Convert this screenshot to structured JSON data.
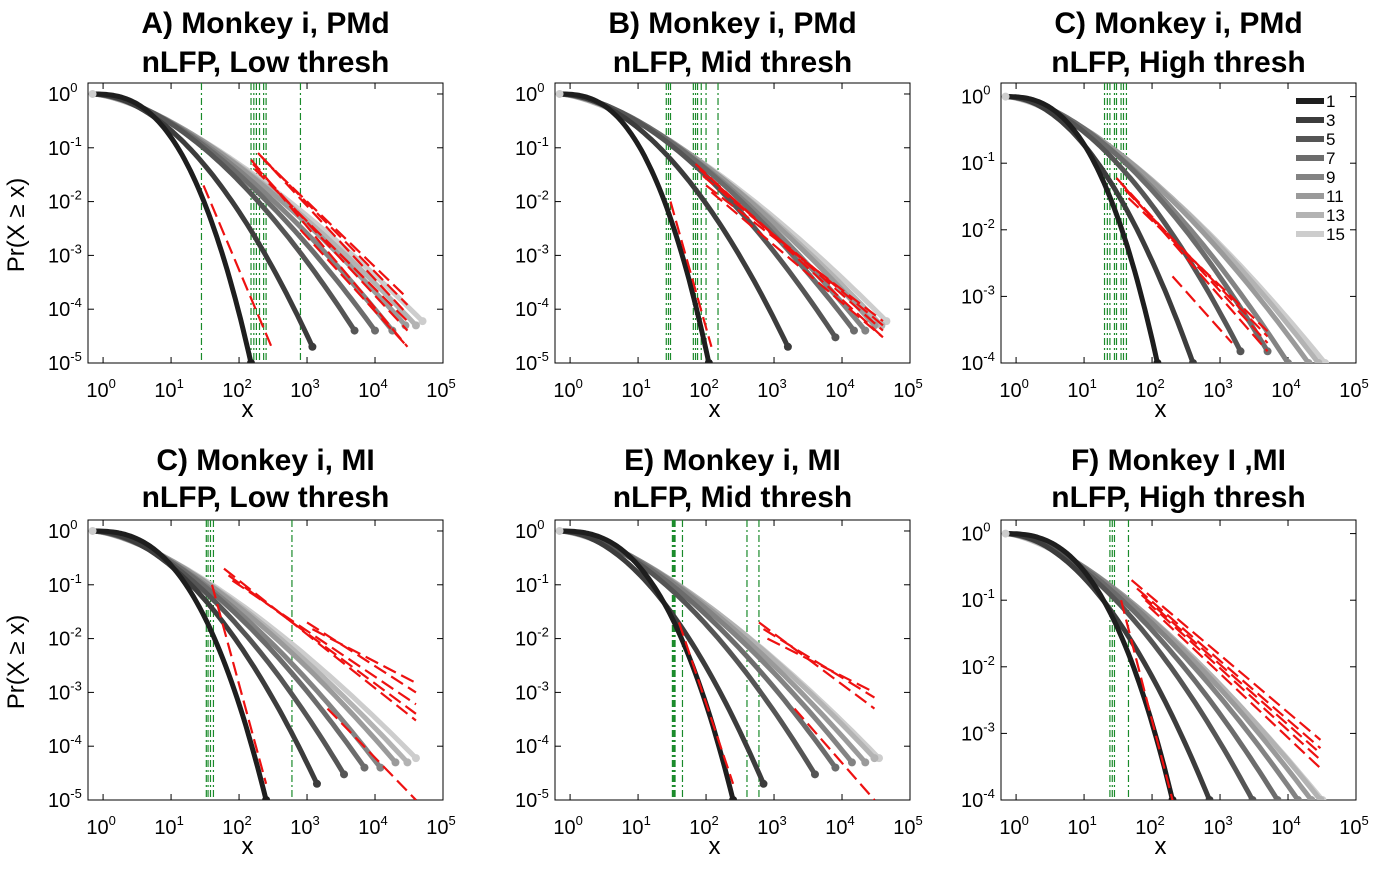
{
  "figure": {
    "shared_xlabel": "x",
    "shared_ylabel": "Pr(X ≥ x)",
    "legend": {
      "entries": [
        "1",
        "3",
        "5",
        "7",
        "9",
        "11",
        "13",
        "15"
      ],
      "colors": [
        "#1e1e1e",
        "#3c3c3c",
        "#555555",
        "#6c6c6c",
        "#838383",
        "#9a9a9a",
        "#b3b3b3",
        "#cdcdcd"
      ]
    },
    "colors": {
      "fit_line": "#ee1111",
      "threshold_line": "#1a8a2a",
      "axis": "#000000"
    }
  },
  "chart_data": [
    {
      "type": "line",
      "title": [
        "A) Monkey i, PMd",
        "nLFP, Low thresh"
      ],
      "xlabel": "x",
      "ylabel": "Pr(X ≥ x)",
      "xscale": "log",
      "yscale": "log",
      "xlim": [
        0.6,
        100000
      ],
      "ylim": [
        1e-05,
        1.6
      ],
      "xticks": [
        "1",
        "10",
        "100",
        "1000",
        "10000",
        "100000"
      ],
      "yticks": [
        "1",
        "0.1",
        "0.01",
        "0.001",
        "0.0001",
        "0.00001"
      ],
      "series": [
        {
          "name": "1",
          "x_end": 150,
          "tail_end": 1e-05,
          "shape": 1.0
        },
        {
          "name": "3",
          "x_end": 1200,
          "tail_end": 2e-05,
          "shape": 0.55
        },
        {
          "name": "5",
          "x_end": 5000,
          "tail_end": 4e-05,
          "shape": 0.45
        },
        {
          "name": "7",
          "x_end": 10000,
          "tail_end": 4e-05,
          "shape": 0.4
        },
        {
          "name": "9",
          "x_end": 18000,
          "tail_end": 4e-05,
          "shape": 0.36
        },
        {
          "name": "11",
          "x_end": 28000,
          "tail_end": 5e-05,
          "shape": 0.33
        },
        {
          "name": "13",
          "x_end": 40000,
          "tail_end": 5e-05,
          "shape": 0.3
        },
        {
          "name": "15",
          "x_end": 50000,
          "tail_end": 6e-05,
          "shape": 0.28
        }
      ],
      "thresholds": [
        28,
        150,
        165,
        180,
        200,
        230,
        250,
        800
      ],
      "fits": [
        {
          "x0": 30,
          "x1": 300,
          "y0": 0.02,
          "y1": 2e-05
        },
        {
          "x0": 150,
          "x1": 30000,
          "y0": 0.06,
          "y1": 2e-05
        },
        {
          "x0": 160,
          "x1": 30000,
          "y0": 0.05,
          "y1": 4e-05
        },
        {
          "x0": 170,
          "x1": 30000,
          "y0": 0.04,
          "y1": 6e-05
        },
        {
          "x0": 190,
          "x1": 30000,
          "y0": 0.08,
          "y1": 8e-05
        },
        {
          "x0": 210,
          "x1": 30000,
          "y0": 0.07,
          "y1": 0.00012
        },
        {
          "x0": 230,
          "x1": 30000,
          "y0": 0.06,
          "y1": 0.00016
        },
        {
          "x0": 800,
          "x1": 30000,
          "y0": 0.003,
          "y1": 2e-05
        }
      ]
    },
    {
      "type": "line",
      "title": [
        "B) Monkey i, PMd",
        "nLFP, Mid thresh"
      ],
      "xlabel": "x",
      "ylabel": "",
      "xscale": "log",
      "yscale": "log",
      "xlim": [
        0.6,
        100000
      ],
      "ylim": [
        1e-05,
        1.6
      ],
      "xticks": [
        "1",
        "10",
        "100",
        "1000",
        "10000",
        "100000"
      ],
      "yticks": [
        "1",
        "0.1",
        "0.01",
        "0.001",
        "0.0001",
        "0.00001"
      ],
      "series": [
        {
          "name": "1",
          "x_end": 110,
          "tail_end": 1e-05,
          "shape": 1.0
        },
        {
          "name": "3",
          "x_end": 1600,
          "tail_end": 2e-05,
          "shape": 0.55
        },
        {
          "name": "5",
          "x_end": 8000,
          "tail_end": 3e-05,
          "shape": 0.45
        },
        {
          "name": "7",
          "x_end": 15000,
          "tail_end": 4e-05,
          "shape": 0.4
        },
        {
          "name": "9",
          "x_end": 22000,
          "tail_end": 4e-05,
          "shape": 0.36
        },
        {
          "name": "11",
          "x_end": 30000,
          "tail_end": 5e-05,
          "shape": 0.33
        },
        {
          "name": "13",
          "x_end": 38000,
          "tail_end": 5e-05,
          "shape": 0.3
        },
        {
          "name": "15",
          "x_end": 45000,
          "tail_end": 6e-05,
          "shape": 0.28
        }
      ],
      "thresholds": [
        26,
        28,
        30,
        65,
        70,
        75,
        85,
        100,
        150
      ],
      "fits": [
        {
          "x0": 30,
          "x1": 120,
          "y0": 0.01,
          "y1": 2e-05
        },
        {
          "x0": 70,
          "x1": 40000,
          "y0": 0.05,
          "y1": 3e-05
        },
        {
          "x0": 80,
          "x1": 40000,
          "y0": 0.04,
          "y1": 4e-05
        },
        {
          "x0": 90,
          "x1": 40000,
          "y0": 0.03,
          "y1": 5e-05
        },
        {
          "x0": 100,
          "x1": 40000,
          "y0": 0.02,
          "y1": 6e-05
        },
        {
          "x0": 120,
          "x1": 40000,
          "y0": 0.015,
          "y1": 3e-05
        }
      ]
    },
    {
      "type": "line",
      "title": [
        "C) Monkey i, PMd",
        "nLFP, High thresh"
      ],
      "xlabel": "x",
      "ylabel": "",
      "xscale": "log",
      "yscale": "log",
      "xlim": [
        0.6,
        100000
      ],
      "ylim": [
        0.0001,
        1.6
      ],
      "xticks": [
        "1",
        "10",
        "100",
        "1000",
        "10000",
        "100000"
      ],
      "yticks": [
        "1",
        "0.1",
        "0.01",
        "0.001",
        "0.0001"
      ],
      "series": [
        {
          "name": "1",
          "x_end": 120,
          "tail_end": 0.0001,
          "shape": 1.0
        },
        {
          "name": "3",
          "x_end": 400,
          "tail_end": 0.0001,
          "shape": 0.6
        },
        {
          "name": "5",
          "x_end": 2000,
          "tail_end": 0.00015,
          "shape": 0.5
        },
        {
          "name": "7",
          "x_end": 5000,
          "tail_end": 0.00015,
          "shape": 0.45
        },
        {
          "name": "9",
          "x_end": 10000,
          "tail_end": 0.0001,
          "shape": 0.4
        },
        {
          "name": "11",
          "x_end": 20000,
          "tail_end": 0.0001,
          "shape": 0.36
        },
        {
          "name": "13",
          "x_end": 28000,
          "tail_end": 0.0001,
          "shape": 0.33
        },
        {
          "name": "15",
          "x_end": 35000,
          "tail_end": 0.0001,
          "shape": 0.3
        }
      ],
      "thresholds": [
        20,
        22,
        24,
        28,
        30,
        35,
        38,
        42
      ],
      "fits": [
        {
          "x0": 30,
          "x1": 5000,
          "y0": 0.06,
          "y1": 0.0002
        },
        {
          "x0": 35,
          "x1": 5000,
          "y0": 0.05,
          "y1": 0.00015
        },
        {
          "x0": 40,
          "x1": 5000,
          "y0": 0.04,
          "y1": 0.00025
        },
        {
          "x0": 45,
          "x1": 5000,
          "y0": 0.03,
          "y1": 0.0003
        },
        {
          "x0": 200,
          "x1": 1500,
          "y0": 0.002,
          "y1": 0.0002
        }
      ]
    },
    {
      "type": "line",
      "title": [
        "C) Monkey i, MI",
        "nLFP, Low thresh"
      ],
      "xlabel": "x",
      "ylabel": "Pr(X ≥ x)",
      "xscale": "log",
      "yscale": "log",
      "xlim": [
        0.6,
        100000
      ],
      "ylim": [
        1e-05,
        1.6
      ],
      "xticks": [
        "1",
        "10",
        "100",
        "1000",
        "10000",
        "100000"
      ],
      "yticks": [
        "1",
        "0.1",
        "0.01",
        "0.001",
        "0.0001",
        "0.00001"
      ],
      "series": [
        {
          "name": "1",
          "x_end": 250,
          "tail_end": 1e-05,
          "shape": 1.0
        },
        {
          "name": "3",
          "x_end": 1400,
          "tail_end": 2e-05,
          "shape": 0.55
        },
        {
          "name": "5",
          "x_end": 3500,
          "tail_end": 3e-05,
          "shape": 0.45
        },
        {
          "name": "7",
          "x_end": 7000,
          "tail_end": 4e-05,
          "shape": 0.4
        },
        {
          "name": "9",
          "x_end": 12000,
          "tail_end": 4e-05,
          "shape": 0.36
        },
        {
          "name": "11",
          "x_end": 20000,
          "tail_end": 5e-05,
          "shape": 0.33
        },
        {
          "name": "13",
          "x_end": 30000,
          "tail_end": 5e-05,
          "shape": 0.3
        },
        {
          "name": "15",
          "x_end": 40000,
          "tail_end": 6e-05,
          "shape": 0.28
        }
      ],
      "thresholds": [
        33,
        35,
        38,
        42,
        600
      ],
      "fits": [
        {
          "x0": 40,
          "x1": 250,
          "y0": 0.1,
          "y1": 2e-05
        },
        {
          "x0": 60,
          "x1": 40000,
          "y0": 0.2,
          "y1": 0.0003
        },
        {
          "x0": 70,
          "x1": 40000,
          "y0": 0.15,
          "y1": 0.0004
        },
        {
          "x0": 80,
          "x1": 40000,
          "y0": 0.12,
          "y1": 0.0006
        },
        {
          "x0": 1000,
          "x1": 40000,
          "y0": 0.02,
          "y1": 0.001
        },
        {
          "x0": 1200,
          "x1": 40000,
          "y0": 0.015,
          "y1": 0.0015
        },
        {
          "x0": 2000,
          "x1": 40000,
          "y0": 0.0005,
          "y1": 1e-05
        }
      ]
    },
    {
      "type": "line",
      "title": [
        "E) Monkey i, MI",
        "nLFP, Mid thresh"
      ],
      "xlabel": "x",
      "ylabel": "",
      "xscale": "log",
      "yscale": "log",
      "xlim": [
        0.6,
        100000
      ],
      "ylim": [
        1e-05,
        1.6
      ],
      "xticks": [
        "1",
        "10",
        "100",
        "1000",
        "10000",
        "100000"
      ],
      "yticks": [
        "1",
        "0.1",
        "0.01",
        "0.001",
        "0.0001",
        "0.00001"
      ],
      "series": [
        {
          "name": "1",
          "x_end": 250,
          "tail_end": 1e-05,
          "shape": 1.0
        },
        {
          "name": "3",
          "x_end": 700,
          "tail_end": 2e-05,
          "shape": 0.55
        },
        {
          "name": "5",
          "x_end": 4000,
          "tail_end": 3e-05,
          "shape": 0.45
        },
        {
          "name": "7",
          "x_end": 8000,
          "tail_end": 4e-05,
          "shape": 0.4
        },
        {
          "name": "9",
          "x_end": 14000,
          "tail_end": 5e-05,
          "shape": 0.36
        },
        {
          "name": "11",
          "x_end": 22000,
          "tail_end": 5e-05,
          "shape": 0.33
        },
        {
          "name": "13",
          "x_end": 30000,
          "tail_end": 6e-05,
          "shape": 0.3
        },
        {
          "name": "15",
          "x_end": 35000,
          "tail_end": 6e-05,
          "shape": 0.28
        }
      ],
      "thresholds": [
        32,
        33,
        34,
        35,
        45,
        400,
        600
      ],
      "fits": [
        {
          "x0": 40,
          "x1": 250,
          "y0": 0.02,
          "y1": 2e-05
        },
        {
          "x0": 600,
          "x1": 30000,
          "y0": 0.02,
          "y1": 0.0005
        },
        {
          "x0": 700,
          "x1": 30000,
          "y0": 0.015,
          "y1": 0.0008
        },
        {
          "x0": 800,
          "x1": 30000,
          "y0": 0.01,
          "y1": 0.001
        },
        {
          "x0": 2000,
          "x1": 30000,
          "y0": 0.0005,
          "y1": 1e-05
        }
      ]
    },
    {
      "type": "line",
      "title": [
        "F) Monkey I ,MI",
        "nLFP, High thresh"
      ],
      "xlabel": "x",
      "ylabel": "",
      "xscale": "log",
      "yscale": "log",
      "xlim": [
        0.6,
        100000
      ],
      "ylim": [
        0.0001,
        1.6
      ],
      "xticks": [
        "1",
        "10",
        "100",
        "1000",
        "10000",
        "100000"
      ],
      "yticks": [
        "1",
        "0.1",
        "0.01",
        "0.001",
        "0.0001"
      ],
      "series": [
        {
          "name": "1",
          "x_end": 200,
          "tail_end": 0.0001,
          "shape": 1.0
        },
        {
          "name": "3",
          "x_end": 700,
          "tail_end": 0.0001,
          "shape": 0.55
        },
        {
          "name": "5",
          "x_end": 3000,
          "tail_end": 0.0001,
          "shape": 0.45
        },
        {
          "name": "7",
          "x_end": 7000,
          "tail_end": 0.0001,
          "shape": 0.4
        },
        {
          "name": "9",
          "x_end": 14000,
          "tail_end": 0.0001,
          "shape": 0.36
        },
        {
          "name": "11",
          "x_end": 22000,
          "tail_end": 0.0001,
          "shape": 0.33
        },
        {
          "name": "13",
          "x_end": 30000,
          "tail_end": 0.0001,
          "shape": 0.3
        },
        {
          "name": "15",
          "x_end": 32000,
          "tail_end": 0.0001,
          "shape": 0.28
        }
      ],
      "thresholds": [
        24,
        26,
        28,
        45
      ],
      "fits": [
        {
          "x0": 35,
          "x1": 200,
          "y0": 0.1,
          "y1": 0.0001
        },
        {
          "x0": 50,
          "x1": 30000,
          "y0": 0.2,
          "y1": 0.0008
        },
        {
          "x0": 60,
          "x1": 30000,
          "y0": 0.15,
          "y1": 0.0006
        },
        {
          "x0": 70,
          "x1": 30000,
          "y0": 0.12,
          "y1": 0.0005
        },
        {
          "x0": 80,
          "x1": 30000,
          "y0": 0.1,
          "y1": 0.0004
        },
        {
          "x0": 90,
          "x1": 30000,
          "y0": 0.08,
          "y1": 0.0003
        }
      ]
    }
  ]
}
